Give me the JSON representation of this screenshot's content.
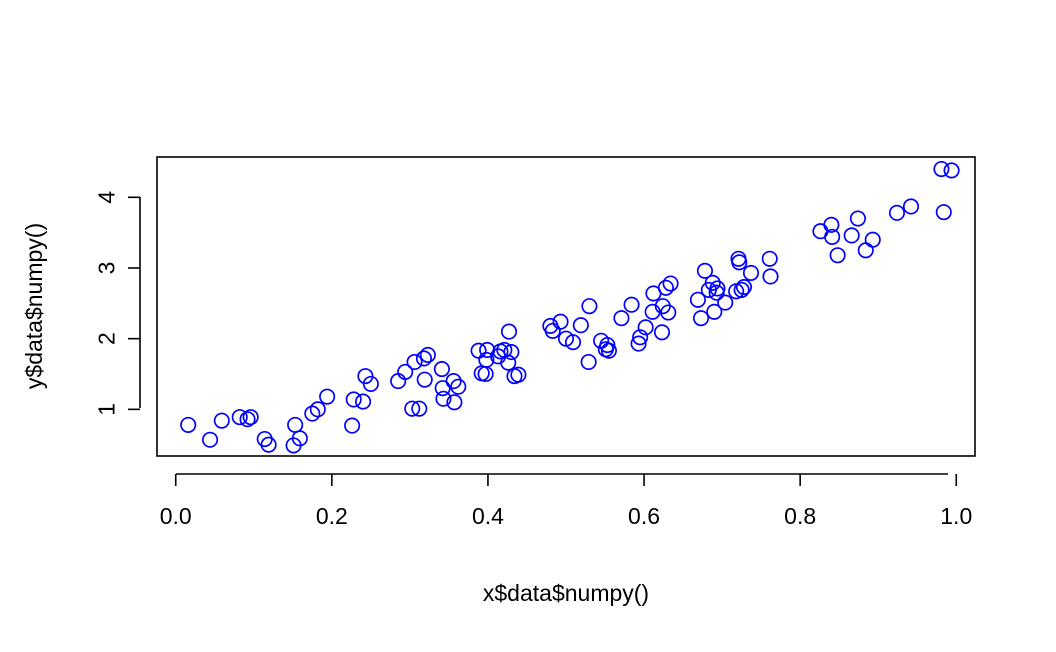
{
  "chart_data": {
    "type": "scatter",
    "title": "",
    "xlabel": "x$data$numpy()",
    "ylabel": "y$data$numpy()",
    "xlim": [
      -0.024,
      1.024
    ],
    "ylim": [
      0.34,
      4.57
    ],
    "xticks": [
      0.0,
      0.2,
      0.4,
      0.6,
      0.8,
      1.0
    ],
    "xtick_labels": [
      "0.0",
      "0.2",
      "0.4",
      "0.6",
      "0.8",
      "1.0"
    ],
    "yticks": [
      1,
      2,
      3,
      4
    ],
    "ytick_labels": [
      "1",
      "2",
      "3",
      "4"
    ],
    "grid": false,
    "legend": "none",
    "marker": "open-circle",
    "color": "#0000ff",
    "series": [
      {
        "points": [
          [
            0.016,
            0.78
          ],
          [
            0.044,
            0.57
          ],
          [
            0.059,
            0.84
          ],
          [
            0.082,
            0.89
          ],
          [
            0.092,
            0.86
          ],
          [
            0.096,
            0.89
          ],
          [
            0.114,
            0.58
          ],
          [
            0.119,
            0.5
          ],
          [
            0.151,
            0.49
          ],
          [
            0.153,
            0.78
          ],
          [
            0.159,
            0.59
          ],
          [
            0.175,
            0.94
          ],
          [
            0.182,
            1.0
          ],
          [
            0.194,
            1.18
          ],
          [
            0.226,
            0.77
          ],
          [
            0.228,
            1.14
          ],
          [
            0.24,
            1.11
          ],
          [
            0.243,
            1.47
          ],
          [
            0.25,
            1.36
          ],
          [
            0.285,
            1.4
          ],
          [
            0.294,
            1.53
          ],
          [
            0.303,
            1.01
          ],
          [
            0.306,
            1.67
          ],
          [
            0.312,
            1.01
          ],
          [
            0.318,
            1.72
          ],
          [
            0.319,
            1.42
          ],
          [
            0.323,
            1.77
          ],
          [
            0.341,
            1.57
          ],
          [
            0.342,
            1.3
          ],
          [
            0.343,
            1.15
          ],
          [
            0.356,
            1.4
          ],
          [
            0.357,
            1.1
          ],
          [
            0.362,
            1.32
          ],
          [
            0.388,
            1.83
          ],
          [
            0.392,
            1.51
          ],
          [
            0.397,
            1.5
          ],
          [
            0.398,
            1.7
          ],
          [
            0.399,
            1.84
          ],
          [
            0.413,
            1.75
          ],
          [
            0.416,
            1.82
          ],
          [
            0.421,
            1.84
          ],
          [
            0.426,
            1.66
          ],
          [
            0.427,
            2.1
          ],
          [
            0.43,
            1.81
          ],
          [
            0.434,
            1.47
          ],
          [
            0.439,
            1.49
          ],
          [
            0.48,
            2.18
          ],
          [
            0.483,
            2.11
          ],
          [
            0.493,
            2.24
          ],
          [
            0.5,
            2.0
          ],
          [
            0.509,
            1.95
          ],
          [
            0.519,
            2.19
          ],
          [
            0.529,
            1.67
          ],
          [
            0.53,
            2.46
          ],
          [
            0.545,
            1.97
          ],
          [
            0.551,
            1.85
          ],
          [
            0.553,
            1.91
          ],
          [
            0.555,
            1.83
          ],
          [
            0.571,
            2.29
          ],
          [
            0.584,
            2.48
          ],
          [
            0.593,
            1.93
          ],
          [
            0.595,
            2.02
          ],
          [
            0.602,
            2.16
          ],
          [
            0.611,
            2.38
          ],
          [
            0.612,
            2.64
          ],
          [
            0.623,
            2.09
          ],
          [
            0.624,
            2.46
          ],
          [
            0.628,
            2.72
          ],
          [
            0.631,
            2.37
          ],
          [
            0.634,
            2.78
          ],
          [
            0.669,
            2.55
          ],
          [
            0.673,
            2.29
          ],
          [
            0.678,
            2.96
          ],
          [
            0.683,
            2.69
          ],
          [
            0.688,
            2.79
          ],
          [
            0.69,
            2.38
          ],
          [
            0.693,
            2.65
          ],
          [
            0.694,
            2.71
          ],
          [
            0.704,
            2.51
          ],
          [
            0.718,
            2.67
          ],
          [
            0.721,
            3.13
          ],
          [
            0.722,
            3.08
          ],
          [
            0.725,
            2.69
          ],
          [
            0.728,
            2.73
          ],
          [
            0.737,
            2.93
          ],
          [
            0.761,
            3.13
          ],
          [
            0.762,
            2.88
          ],
          [
            0.826,
            3.52
          ],
          [
            0.84,
            3.61
          ],
          [
            0.841,
            3.44
          ],
          [
            0.848,
            3.18
          ],
          [
            0.866,
            3.46
          ],
          [
            0.874,
            3.7
          ],
          [
            0.884,
            3.25
          ],
          [
            0.893,
            3.4
          ],
          [
            0.924,
            3.78
          ],
          [
            0.942,
            3.87
          ],
          [
            0.981,
            4.4
          ],
          [
            0.984,
            3.79
          ],
          [
            0.994,
            4.38
          ]
        ]
      }
    ]
  }
}
